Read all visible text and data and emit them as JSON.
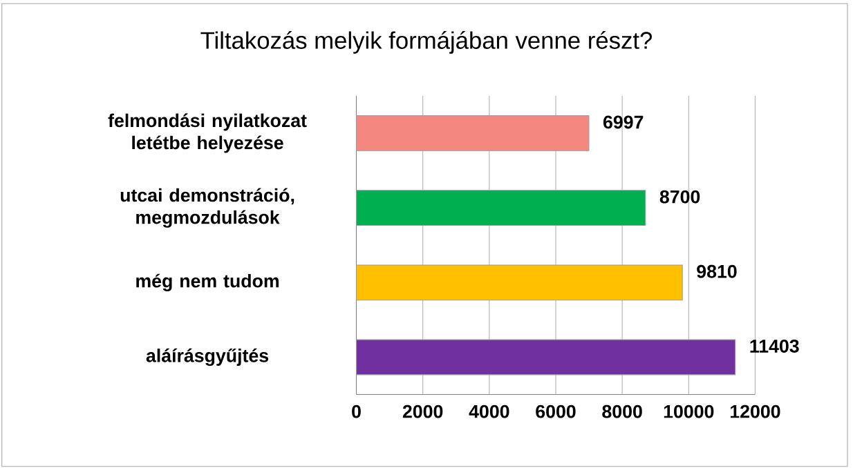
{
  "chart_data": {
    "type": "bar",
    "orientation": "horizontal",
    "title": "Tiltakozás melyik formájában venne részt?",
    "categories": [
      "felmondási nyilatkozat letétbe helyezése",
      "utcai demonstráció, megmozdulások",
      "még nem tudom",
      "aláírásgyűjtés"
    ],
    "values": [
      6997,
      8700,
      9810,
      11403
    ],
    "colors": [
      "#f4877f",
      "#00b050",
      "#ffc000",
      "#7030a0"
    ],
    "xlim": [
      0,
      12000
    ],
    "xticks": [
      0,
      2000,
      4000,
      6000,
      8000,
      10000,
      12000
    ],
    "grid": "x",
    "data_labels": true
  }
}
